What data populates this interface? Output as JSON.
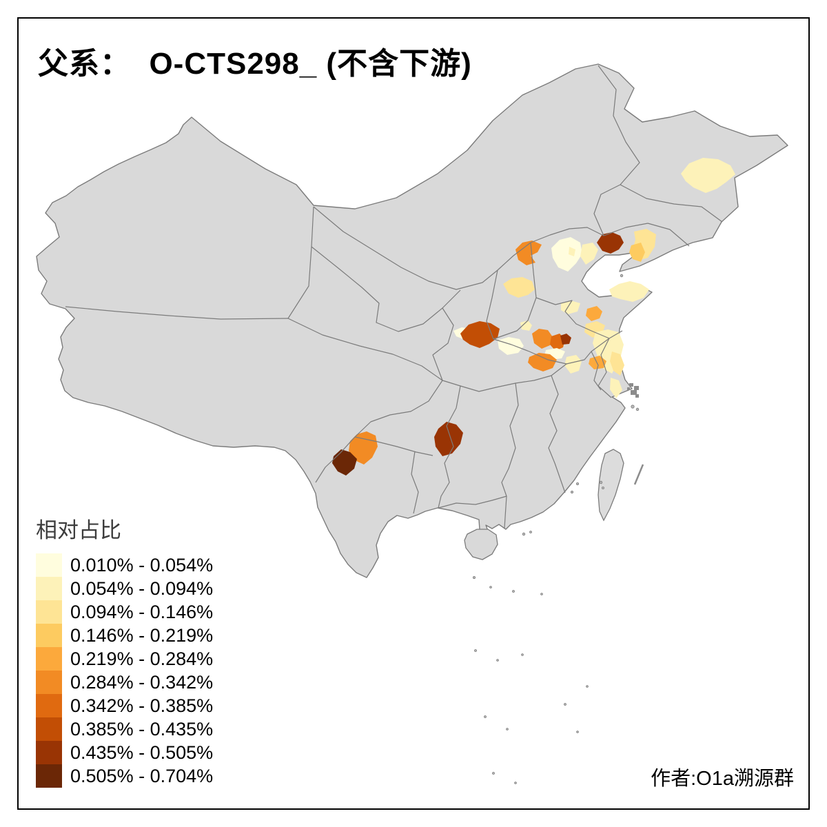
{
  "title": "父系：  O-CTS298_ (不含下游)",
  "attribution": "作者:O1a溯源群",
  "legend": {
    "title": "相对占比",
    "classes": [
      {
        "label": "0.010% - 0.054%",
        "color": "#FFFDDE"
      },
      {
        "label": "0.054% - 0.094%",
        "color": "#FDF2B9"
      },
      {
        "label": "0.094% - 0.146%",
        "color": "#FEE495"
      },
      {
        "label": "0.146% - 0.219%",
        "color": "#FDCB60"
      },
      {
        "label": "0.219% - 0.284%",
        "color": "#FCA93C"
      },
      {
        "label": "0.284% - 0.342%",
        "color": "#F28B24"
      },
      {
        "label": "0.342% - 0.385%",
        "color": "#E06A10"
      },
      {
        "label": "0.385% - 0.435%",
        "color": "#C24E05"
      },
      {
        "label": "0.435% - 0.505%",
        "color": "#993404"
      },
      {
        "label": "0.505% - 0.704%",
        "color": "#6B2706"
      }
    ]
  },
  "map": {
    "land_color": "#D9D9D9",
    "border_color": "#7B7B7B",
    "sea_color": "#FFFFFF",
    "city_cluster_color": "#8C8C8C",
    "regions": [
      {
        "id": "r01",
        "class": 2,
        "points": [
          [
            988,
            252
          ],
          [
            1000,
            237
          ],
          [
            1020,
            229
          ],
          [
            1042,
            231
          ],
          [
            1060,
            240
          ],
          [
            1067,
            253
          ],
          [
            1054,
            264
          ],
          [
            1040,
            274
          ],
          [
            1024,
            280
          ],
          [
            1006,
            272
          ],
          [
            995,
            263
          ]
        ]
      },
      {
        "id": "r02",
        "class": 9,
        "points": [
          [
            866,
            352
          ],
          [
            874,
            340
          ],
          [
            888,
            337
          ],
          [
            900,
            342
          ],
          [
            905,
            352
          ],
          [
            898,
            362
          ],
          [
            886,
            368
          ],
          [
            874,
            364
          ]
        ]
      },
      {
        "id": "r03",
        "class": 3,
        "points": [
          [
            920,
            336
          ],
          [
            938,
            332
          ],
          [
            952,
            340
          ],
          [
            950,
            358
          ],
          [
            940,
            374
          ],
          [
            926,
            378
          ],
          [
            918,
            362
          ],
          [
            922,
            348
          ]
        ]
      },
      {
        "id": "r04",
        "class": 4,
        "points": [
          [
            916,
            356
          ],
          [
            930,
            352
          ],
          [
            936,
            366
          ],
          [
            930,
            380
          ],
          [
            918,
            376
          ],
          [
            913,
            366
          ]
        ]
      },
      {
        "id": "r05",
        "class": 6,
        "points": [
          [
            748,
            362
          ],
          [
            758,
            352
          ],
          [
            772,
            349
          ],
          [
            786,
            355
          ],
          [
            780,
            366
          ],
          [
            770,
            371
          ],
          [
            777,
            381
          ],
          [
            764,
            385
          ],
          [
            752,
            377
          ]
        ]
      },
      {
        "id": "r06",
        "class": 1,
        "points": [
          [
            800,
            360
          ],
          [
            812,
            348
          ],
          [
            828,
            344
          ],
          [
            842,
            352
          ],
          [
            845,
            368
          ],
          [
            836,
            382
          ],
          [
            824,
            394
          ],
          [
            810,
            388
          ],
          [
            802,
            374
          ]
        ]
      },
      {
        "id": "r07",
        "class": 2,
        "points": [
          [
            826,
            358
          ],
          [
            835,
            362
          ],
          [
            833,
            372
          ],
          [
            825,
            369
          ]
        ]
      },
      {
        "id": "r08",
        "class": 2,
        "points": [
          [
            845,
            355
          ],
          [
            860,
            352
          ],
          [
            868,
            362
          ],
          [
            862,
            376
          ],
          [
            850,
            384
          ],
          [
            842,
            372
          ]
        ]
      },
      {
        "id": "r09",
        "class": 3,
        "points": [
          [
            730,
            412
          ],
          [
            742,
            404
          ],
          [
            758,
            402
          ],
          [
            772,
            408
          ],
          [
            776,
            420
          ],
          [
            766,
            428
          ],
          [
            752,
            432
          ],
          [
            738,
            426
          ]
        ]
      },
      {
        "id": "r10",
        "class": 2,
        "points": [
          [
            814,
            440
          ],
          [
            828,
            436
          ],
          [
            842,
            440
          ],
          [
            838,
            452
          ],
          [
            824,
            456
          ],
          [
            814,
            450
          ]
        ]
      },
      {
        "id": "r11",
        "class": 2,
        "points": [
          [
            884,
            420
          ],
          [
            898,
            412
          ],
          [
            914,
            408
          ],
          [
            930,
            412
          ],
          [
            942,
            420
          ],
          [
            934,
            432
          ],
          [
            918,
            438
          ],
          [
            900,
            434
          ],
          [
            888,
            430
          ]
        ]
      },
      {
        "id": "r12",
        "class": 5,
        "points": [
          [
            852,
            448
          ],
          [
            866,
            444
          ],
          [
            874,
            452
          ],
          [
            870,
            462
          ],
          [
            858,
            466
          ],
          [
            850,
            458
          ]
        ]
      },
      {
        "id": "r13",
        "class": 3,
        "points": [
          [
            850,
            470
          ],
          [
            866,
            466
          ],
          [
            878,
            472
          ],
          [
            874,
            484
          ],
          [
            860,
            490
          ],
          [
            848,
            482
          ]
        ]
      },
      {
        "id": "r14",
        "class": 2,
        "points": [
          [
            864,
            482
          ],
          [
            882,
            478
          ],
          [
            898,
            482
          ],
          [
            905,
            500
          ],
          [
            900,
            520
          ],
          [
            888,
            542
          ],
          [
            874,
            534
          ],
          [
            866,
            514
          ],
          [
            860,
            498
          ]
        ]
      },
      {
        "id": "r15",
        "class": 5,
        "points": [
          [
            856,
            520
          ],
          [
            870,
            516
          ],
          [
            880,
            524
          ],
          [
            876,
            534
          ],
          [
            862,
            536
          ],
          [
            854,
            528
          ]
        ]
      },
      {
        "id": "r16",
        "class": 3,
        "points": [
          [
            888,
            510
          ],
          [
            900,
            514
          ],
          [
            906,
            530
          ],
          [
            900,
            545
          ],
          [
            890,
            538
          ],
          [
            885,
            524
          ]
        ]
      },
      {
        "id": "r17",
        "class": 2,
        "points": [
          [
            886,
            548
          ],
          [
            898,
            552
          ],
          [
            903,
            566
          ],
          [
            894,
            578
          ],
          [
            885,
            565
          ]
        ]
      },
      {
        "id": "r18",
        "class": 2,
        "points": [
          [
            755,
            468
          ],
          [
            766,
            465
          ],
          [
            772,
            472
          ],
          [
            768,
            480
          ],
          [
            757,
            478
          ]
        ]
      },
      {
        "id": "r19",
        "class": 1,
        "points": [
          [
            658,
            480
          ],
          [
            670,
            475
          ],
          [
            684,
            477
          ],
          [
            692,
            484
          ],
          [
            686,
            492
          ],
          [
            672,
            492
          ],
          [
            662,
            488
          ]
        ]
      },
      {
        "id": "r20",
        "class": 8,
        "points": [
          [
            668,
            484
          ],
          [
            680,
            471
          ],
          [
            696,
            466
          ],
          [
            712,
            469
          ],
          [
            725,
            477
          ],
          [
            722,
            490
          ],
          [
            710,
            499
          ],
          [
            696,
            505
          ],
          [
            682,
            500
          ],
          [
            672,
            493
          ]
        ]
      },
      {
        "id": "r21",
        "class": 1,
        "points": [
          [
            722,
            494
          ],
          [
            738,
            489
          ],
          [
            754,
            492
          ],
          [
            760,
            502
          ],
          [
            752,
            512
          ],
          [
            736,
            515
          ],
          [
            724,
            506
          ]
        ]
      },
      {
        "id": "r22",
        "class": 6,
        "points": [
          [
            772,
            484
          ],
          [
            782,
            477
          ],
          [
            795,
            479
          ],
          [
            802,
            489
          ],
          [
            798,
            501
          ],
          [
            786,
            506
          ],
          [
            775,
            498
          ]
        ]
      },
      {
        "id": "r23",
        "class": 7,
        "points": [
          [
            800,
            488
          ],
          [
            812,
            484
          ],
          [
            820,
            492
          ],
          [
            817,
            504
          ],
          [
            806,
            509
          ],
          [
            798,
            500
          ]
        ]
      },
      {
        "id": "r24",
        "class": 9,
        "points": [
          [
            813,
            487
          ],
          [
            822,
            484
          ],
          [
            829,
            490
          ],
          [
            826,
            499
          ],
          [
            816,
            500
          ]
        ]
      },
      {
        "id": "r25",
        "class": 1,
        "points": [
          [
            792,
            508
          ],
          [
            808,
            505
          ],
          [
            820,
            510
          ],
          [
            815,
            520
          ],
          [
            800,
            522
          ],
          [
            790,
            516
          ]
        ]
      },
      {
        "id": "r26",
        "class": 6,
        "points": [
          [
            768,
            518
          ],
          [
            782,
            512
          ],
          [
            798,
            514
          ],
          [
            808,
            522
          ],
          [
            802,
            534
          ],
          [
            788,
            539
          ],
          [
            774,
            534
          ],
          [
            766,
            526
          ]
        ]
      },
      {
        "id": "r27",
        "class": 2,
        "points": [
          [
            822,
            518
          ],
          [
            836,
            515
          ],
          [
            844,
            524
          ],
          [
            840,
            538
          ],
          [
            828,
            542
          ],
          [
            819,
            530
          ]
        ]
      },
      {
        "id": "r28",
        "class": 6,
        "points": [
          [
            508,
            640
          ],
          [
            518,
            630
          ],
          [
            532,
            626
          ],
          [
            545,
            632
          ],
          [
            548,
            648
          ],
          [
            540,
            664
          ],
          [
            528,
            674
          ],
          [
            515,
            668
          ],
          [
            506,
            654
          ]
        ]
      },
      {
        "id": "r29",
        "class": 10,
        "points": [
          [
            484,
            662
          ],
          [
            495,
            652
          ],
          [
            508,
            656
          ],
          [
            518,
            666
          ],
          [
            514,
            680
          ],
          [
            502,
            690
          ],
          [
            490,
            684
          ],
          [
            482,
            672
          ]
        ]
      },
      {
        "id": "r30",
        "class": 9,
        "points": [
          [
            636,
            622
          ],
          [
            648,
            612
          ],
          [
            662,
            616
          ],
          [
            672,
            628
          ],
          [
            668,
            644
          ],
          [
            656,
            658
          ],
          [
            642,
            662
          ],
          [
            632,
            648
          ],
          [
            630,
            634
          ]
        ]
      }
    ]
  }
}
